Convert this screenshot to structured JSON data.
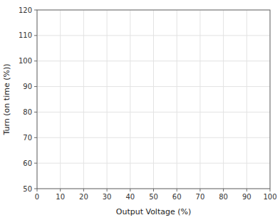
{
  "chart_data": {
    "type": "line",
    "xlabel": "Output Voltage (%)",
    "ylabel": "Turn (on time (%))",
    "xlim": [
      0,
      100
    ],
    "ylim": [
      50,
      120
    ],
    "xticks": [
      0,
      10,
      20,
      30,
      40,
      50,
      60,
      70,
      80,
      90,
      100
    ],
    "yticks": [
      50,
      60,
      70,
      80,
      90,
      100,
      110,
      120
    ],
    "series": [],
    "grid": true
  }
}
